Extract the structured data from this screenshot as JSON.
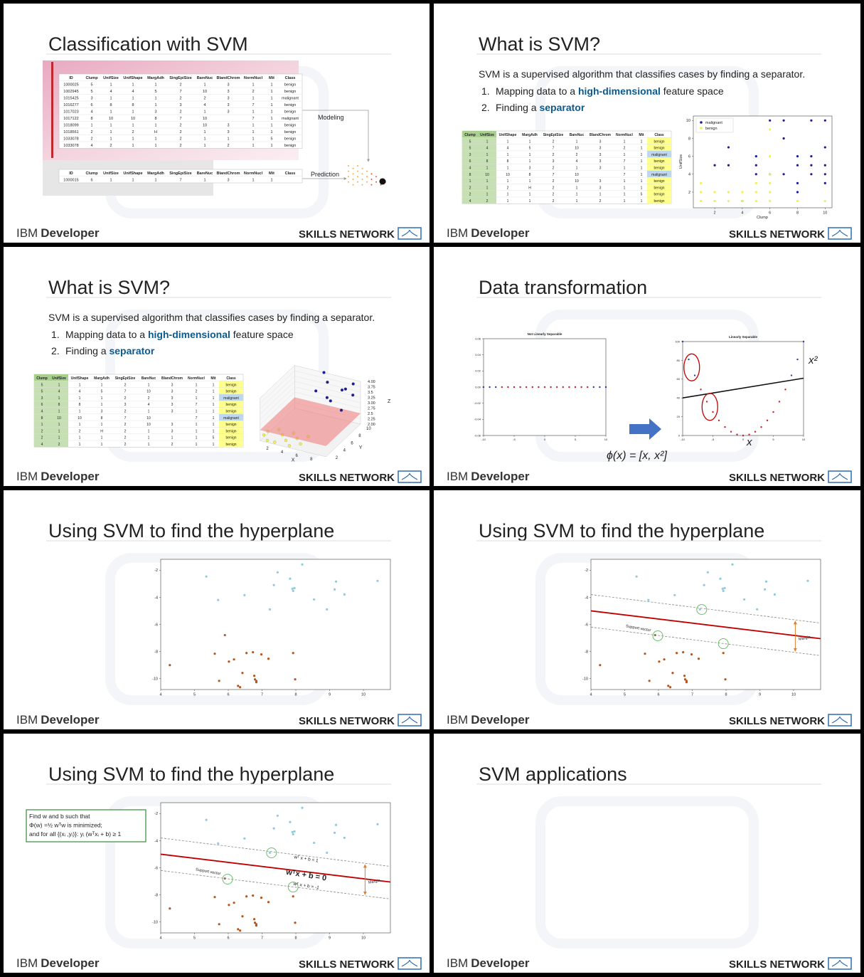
{
  "footer": {
    "company": "IBM",
    "product": "Developer",
    "network": "SKILLS NETWORK"
  },
  "svm_table": {
    "columns": [
      "Clump",
      "UnifSize",
      "UnifShape",
      "MargAdh",
      "SingEpiSize",
      "BareNuc",
      "BlandChrom",
      "NormNucl",
      "Mit",
      "Class"
    ],
    "rows": [
      [
        "5",
        "1",
        "1",
        "1",
        "2",
        "1",
        "3",
        "1",
        "1",
        "benign"
      ],
      [
        "5",
        "4",
        "4",
        "5",
        "7",
        "10",
        "3",
        "2",
        "1",
        "benign"
      ],
      [
        "3",
        "1",
        "1",
        "1",
        "2",
        "2",
        "3",
        "1",
        "1",
        "malignant"
      ],
      [
        "6",
        "8",
        "8",
        "1",
        "3",
        "4",
        "3",
        "7",
        "1",
        "benign"
      ],
      [
        "4",
        "1",
        "1",
        "3",
        "2",
        "1",
        "3",
        "1",
        "1",
        "benign"
      ],
      [
        "8",
        "10",
        "10",
        "8",
        "7",
        "10",
        null,
        "7",
        "1",
        "malignant"
      ],
      [
        "1",
        "1",
        "1",
        "1",
        "2",
        "10",
        "3",
        "1",
        "1",
        "benign"
      ],
      [
        "2",
        "1",
        "2",
        "H",
        "2",
        "1",
        "3",
        "1",
        "1",
        "benign"
      ],
      [
        "2",
        "1",
        "1",
        "1",
        "2",
        "1",
        "1",
        "1",
        "5",
        "benign"
      ],
      [
        "4",
        "2",
        "1",
        "1",
        "2",
        "1",
        "2",
        "1",
        "1",
        "benign"
      ]
    ]
  },
  "hyperplane_points": {
    "type": "scatter",
    "xlim": [
      4,
      10.8
    ],
    "ylim": [
      -10.8,
      -1.2
    ],
    "xticks": [
      4,
      5,
      6,
      7,
      8,
      9,
      10
    ],
    "yticks": [
      -2,
      -4,
      -6,
      -8,
      -10
    ],
    "series": [
      {
        "color": "#8fcbe0",
        "x": [
          5.35,
          5.7,
          6.48,
          7.23,
          7.35,
          7.46,
          7.83,
          7.9,
          7.92,
          7.96,
          8.19,
          8.54,
          8.92,
          9.15,
          9.19,
          9.44,
          10.42
        ],
        "y": [
          -2.47,
          -4.2,
          -3.84,
          -4.89,
          -3.1,
          -2.16,
          -2.63,
          -3.37,
          -3.53,
          -3.32,
          -1.58,
          -4.16,
          -4.89,
          -3.42,
          -2.84,
          -3.79,
          -2.79
        ]
      },
      {
        "color": "#b4561e",
        "x": [
          4.27,
          5.6,
          5.9,
          5.73,
          6.02,
          6.17,
          6.29,
          6.35,
          6.42,
          6.54,
          6.73,
          6.77,
          6.79,
          6.83,
          6.83,
          6.98,
          7.19,
          7.92,
          7.98
        ],
        "y": [
          -9.0,
          -8.16,
          -6.79,
          -10.16,
          -8.74,
          -8.58,
          -10.53,
          -10.63,
          -9.58,
          -8.11,
          -8.05,
          -9.79,
          -10.05,
          -10.16,
          -10.26,
          -8.21,
          -8.53,
          -8.11,
          -10.05
        ]
      }
    ]
  },
  "slides": [
    {
      "title": "Classification with SVM",
      "training_table": {
        "columns": [
          "ID",
          "Clump",
          "UnifSize",
          "UnifShape",
          "MargAdh",
          "SingEpiSize",
          "BareNuc",
          "BlandChrom",
          "NormNucl",
          "Mit",
          "Class"
        ],
        "rows": [
          [
            "1000025",
            "5",
            "1",
            "1",
            "1",
            "2",
            "1",
            "3",
            "1",
            "1",
            "benign"
          ],
          [
            "1002945",
            "5",
            "4",
            "4",
            "5",
            "7",
            "10",
            "3",
            "2",
            "1",
            "benign"
          ],
          [
            "1015425",
            "3",
            "1",
            "1",
            "1",
            "2",
            "2",
            "3",
            "1",
            "1",
            "malignant"
          ],
          [
            "1016277",
            "6",
            "8",
            "8",
            "1",
            "3",
            "4",
            "3",
            "7",
            "1",
            "benign"
          ],
          [
            "1017023",
            "4",
            "1",
            "1",
            "3",
            "2",
            "1",
            "3",
            "1",
            "1",
            "benign"
          ],
          [
            "1017122",
            "8",
            "10",
            "10",
            "8",
            "7",
            "10",
            null,
            "7",
            "1",
            "malignant"
          ],
          [
            "1018099",
            "1",
            "1",
            "1",
            "1",
            "2",
            "10",
            "3",
            "1",
            "1",
            "benign"
          ],
          [
            "1018561",
            "2",
            "1",
            "2",
            "H",
            "2",
            "1",
            "3",
            "1",
            "1",
            "benign"
          ],
          [
            "1033078",
            "2",
            "1",
            "1",
            "1",
            "2",
            "1",
            "1",
            "1",
            "5",
            "benign"
          ],
          [
            "1033078",
            "4",
            "2",
            "1",
            "1",
            "2",
            "1",
            "2",
            "1",
            "1",
            "benign"
          ]
        ]
      },
      "prediction_table": {
        "columns": [
          "ID",
          "Clump",
          "UnifSize",
          "UnifShape",
          "MargAdh",
          "SingEpiSize",
          "BareNuc",
          "BlandChrom",
          "NormNucl",
          "Mit",
          "Class"
        ],
        "rows": [
          [
            "1000015",
            "6",
            "1",
            "1",
            "1",
            "7",
            "1",
            "3",
            "1",
            "1",
            null
          ]
        ]
      },
      "modeling_label": "Modeling",
      "prediction_label": "Prediction"
    },
    {
      "title": "What is SVM?",
      "intro": "SVM is a supervised algorithm that classifies cases by finding a separator.",
      "steps": [
        {
          "number": "1.",
          "text": "Mapping data to a ",
          "bold": "high-dimensional",
          "rest": " feature space"
        },
        {
          "number": "2.",
          "text": "Finding a ",
          "bold": "separator"
        }
      ],
      "chart_data": {
        "type": "scatter",
        "x_label": "Clump",
        "y_label": "UnifSize",
        "xlim": [
          0.45,
          10.5
        ],
        "ylim": [
          0.25,
          10.5
        ],
        "xticks": [
          2,
          4,
          6,
          8,
          10
        ],
        "yticks": [
          2,
          4,
          6,
          8,
          10
        ],
        "legend": "upper left",
        "series": [
          {
            "name": "malignant",
            "color": "#1c1c9a",
            "x": [
              6,
              7,
              9,
              10,
              7,
              3,
              10,
              9,
              8,
              5,
              3,
              2,
              5,
              9,
              8,
              10,
              5,
              6,
              7,
              9,
              10,
              8,
              10,
              8,
              4
            ],
            "y": [
              10,
              10,
              10,
              10,
              8,
              7,
              7,
              6,
              6,
              6,
              5,
              5,
              5,
              5,
              5,
              5,
              4,
              4,
              4,
              4,
              4,
              3,
              3,
              2,
              1
            ]
          },
          {
            "name": "benign",
            "color": "#f0f050",
            "x": [
              1,
              2,
              3,
              4,
              5,
              6,
              1,
              2,
              3,
              4,
              5,
              6,
              6,
              5,
              6,
              6,
              6,
              1,
              10,
              8
            ],
            "y": [
              1,
              1,
              1,
              1,
              1,
              1,
              2,
              2,
              2,
              2,
              2,
              2,
              3,
              3,
              4,
              6,
              9,
              3,
              1,
              1
            ]
          }
        ]
      }
    },
    {
      "title": "What is SVM?",
      "intro": "SVM is a supervised algorithm that classifies cases by finding a separator.",
      "steps": [
        {
          "number": "1.",
          "text": "Mapping data to a ",
          "bold": "high-dimensional",
          "rest": " feature space"
        },
        {
          "number": "2.",
          "text": "Finding a ",
          "bold": "separator"
        }
      ],
      "chart_data": {
        "type": "scatter3d",
        "x_label": "X",
        "y_label": "Y",
        "z_label": "Z",
        "xlim": [
          1,
          10
        ],
        "ylim": [
          1,
          10
        ],
        "zlim": [
          2,
          4
        ],
        "xticks": [
          2,
          4,
          6,
          8
        ],
        "yticks": [
          2,
          4,
          6,
          8,
          10
        ],
        "zticks": [
          {
            "value": 4,
            "label": "4.00"
          },
          3.75,
          3.5,
          3.25,
          {
            "value": 3,
            "label": "3.00"
          },
          2.75,
          2.5,
          2.25,
          {
            "value": 2,
            "label": "2.00"
          }
        ],
        "plane_z": 2.5,
        "series": [
          {
            "color": "#1c1c9a",
            "x": [
              5,
              6,
              8,
              9,
              10,
              7,
              8,
              9,
              10,
              6
            ],
            "y": [
              10,
              9,
              9,
              8,
              8,
              7,
              6,
              10,
              5,
              6
            ],
            "z": [
              4.0,
              3.8,
              3.6,
              3.9,
              3.7,
              3.5,
              3.6,
              3.8,
              3.5,
              3.9
            ]
          },
          {
            "color": "#f0f050",
            "x": [
              1,
              2,
              3,
              4,
              5,
              6,
              3,
              4,
              5,
              2,
              1,
              6
            ],
            "y": [
              2,
              1,
              3,
              2,
              1,
              4,
              1,
              4,
              3,
              4,
              3,
              2
            ],
            "z": [
              2.1,
              2.1,
              2.1,
              2.1,
              2.1,
              2.1,
              2.1,
              2.1,
              2.1,
              2.1,
              2.1,
              2.1
            ]
          }
        ]
      }
    },
    {
      "title": "Data transformation",
      "formula": "ϕ(x) = [x, x²]",
      "chart_data": [
        {
          "type": "scatter",
          "title": "Not Linearly Separable",
          "xlim": [
            -10,
            10
          ],
          "ylim": [
            -0.06,
            0.06
          ],
          "xticks": [
            -10,
            -5,
            0,
            5,
            10
          ],
          "yticks": [
            0.06,
            0.04,
            0.02,
            {
              "value": 0,
              "label": "0.00"
            },
            -0.02,
            -0.04,
            -0.06
          ],
          "series": [
            {
              "color": "#2b3fa8",
              "x": [
                -10,
                -9,
                -8,
                8,
                9,
                10
              ],
              "y": [
                0,
                0,
                0,
                0,
                0,
                0
              ]
            },
            {
              "color": "#c0282d",
              "x": [
                -7,
                -6,
                -5,
                -4,
                -3,
                -2,
                -1,
                0,
                1,
                2,
                3,
                4,
                5,
                6,
                7
              ],
              "y": [
                0,
                0,
                0,
                0,
                0,
                0,
                0,
                0,
                0,
                0,
                0,
                0,
                0,
                0,
                0
              ]
            }
          ]
        },
        {
          "type": "scatter",
          "title": "Linearly Separable",
          "x_label": "x",
          "y_label": "x²",
          "xlim": [
            -10,
            10
          ],
          "ylim": [
            0,
            100
          ],
          "xticks": [
            -10,
            -5,
            0,
            5,
            10
          ],
          "yticks": [
            0,
            20,
            40,
            60,
            80,
            100
          ],
          "line": {
            "x": [
              -10,
              10
            ],
            "y": [
              40,
              61
            ]
          },
          "series": [
            {
              "color": "#2b3fa8",
              "x": [
                -10,
                -9,
                -8,
                8,
                9,
                10
              ],
              "y": [
                100,
                81,
                64,
                64,
                81,
                100
              ]
            },
            {
              "color": "#c0282d",
              "x": [
                -7,
                -6,
                -5,
                -4,
                -3,
                -2,
                -1,
                0,
                1,
                2,
                3,
                4,
                5,
                6,
                7
              ],
              "y": [
                49,
                36,
                25,
                16,
                9,
                4,
                1,
                0,
                1,
                4,
                9,
                16,
                25,
                36,
                49
              ]
            }
          ]
        }
      ]
    },
    {
      "title": "Using SVM to find the hyperplane",
      "chart_data": {
        "type": "svm_scatter"
      }
    },
    {
      "title": "Using SVM to find the hyperplane",
      "chart_data": {
        "type": "svm_scatter",
        "hyperplane": {
          "x": [
            4,
            10.8
          ],
          "y": [
            -5.0,
            -7.05
          ]
        },
        "upper_margin": {
          "x": [
            4,
            10.8
          ],
          "y": [
            -3.8,
            -5.9
          ]
        },
        "lower_margin": {
          "x": [
            4,
            10.8
          ],
          "y": [
            -6.2,
            -8.3
          ]
        },
        "support_vectors": {
          "x": [
            7.28,
            5.98,
            7.92
          ],
          "y": [
            -4.9,
            -6.84,
            -7.42
          ]
        },
        "support_vector_label": "Support vector",
        "margin_label": "Margin"
      }
    },
    {
      "title": "Using SVM to find the hyperplane",
      "optimization_box": [
        "Find w and b such that",
        "Φ(w) =½ wᵀw  is minimized;",
        "and for all {(xᵢ ,yᵢ)}: yᵢ (wᵀxᵢ + b) ≥ 1"
      ],
      "chart_data": {
        "type": "svm_scatter",
        "hyperplane": {
          "x": [
            4,
            10.8
          ],
          "y": [
            -5.0,
            -7.05
          ]
        },
        "upper_margin": {
          "x": [
            4,
            10.8
          ],
          "y": [
            -3.8,
            -5.9
          ]
        },
        "lower_margin": {
          "x": [
            4,
            10.8
          ],
          "y": [
            -6.2,
            -8.3
          ]
        },
        "support_vectors": {
          "x": [
            7.28,
            5.98,
            7.92
          ],
          "y": [
            -4.9,
            -6.84,
            -7.42
          ]
        },
        "support_vector_label": "Support vector",
        "margin_label": "Margin",
        "hyperplane_label": "wᵀx + b = 0",
        "upper_label": "wᵀ x + b = 1",
        "lower_label": "wᵀ x + b = -1"
      }
    },
    {
      "title": "SVM applications"
    }
  ]
}
